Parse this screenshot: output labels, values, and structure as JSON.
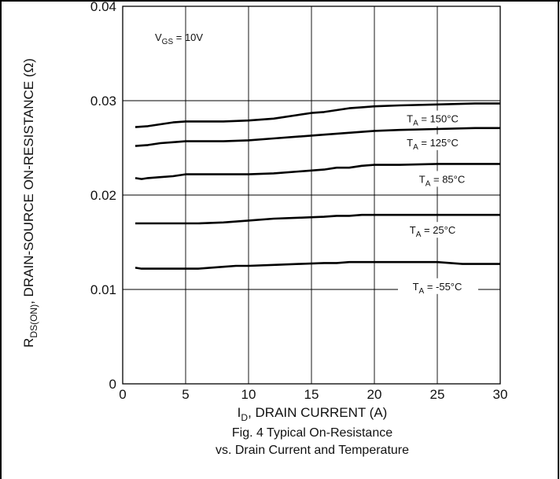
{
  "chart_data": {
    "type": "line",
    "title": "",
    "caption_line1": "Fig. 4 Typical On-Resistance",
    "caption_line2": "vs. Drain Current and Temperature",
    "xlabel": {
      "main": "I",
      "sub": "D",
      "rest": ", DRAIN CURRENT (A)"
    },
    "ylabel": {
      "main": "R",
      "sub": "DS(ON)",
      "rest": ",  DRAIN-SOURCE ON-RESISTANCE (Ω)"
    },
    "condition": {
      "main": "V",
      "sub": "GS",
      "rest": " = 10V"
    },
    "xlim": [
      0,
      30
    ],
    "ylim": [
      0,
      0.04
    ],
    "x_ticks": [
      "0",
      "5",
      "10",
      "15",
      "20",
      "25",
      "30"
    ],
    "y_ticks": [
      "0",
      "0.01",
      "0.02",
      "0.03",
      "0.04"
    ],
    "grid": true,
    "series": [
      {
        "name": "150°C",
        "label_main": "T",
        "label_sub": "A",
        "label_rest": " = 150°C",
        "x": [
          1,
          2,
          3,
          4,
          5,
          6,
          8,
          10,
          12,
          14,
          15,
          16,
          17,
          18,
          19,
          20,
          22,
          25,
          28,
          30
        ],
        "y": [
          0.0272,
          0.0273,
          0.0275,
          0.0277,
          0.0278,
          0.0278,
          0.0278,
          0.0279,
          0.0281,
          0.0285,
          0.0287,
          0.0288,
          0.029,
          0.0292,
          0.0293,
          0.0294,
          0.0295,
          0.0296,
          0.0297,
          0.0297
        ]
      },
      {
        "name": "125°C",
        "label_main": "T",
        "label_sub": "A",
        "label_rest": " = 125°C",
        "x": [
          1,
          2,
          3,
          4,
          5,
          6,
          8,
          10,
          12,
          14,
          16,
          18,
          20,
          22,
          25,
          28,
          30
        ],
        "y": [
          0.0252,
          0.0253,
          0.0255,
          0.0256,
          0.0257,
          0.0257,
          0.0257,
          0.0258,
          0.026,
          0.0262,
          0.0264,
          0.0266,
          0.0268,
          0.0269,
          0.027,
          0.0271,
          0.0271
        ]
      },
      {
        "name": "85°C",
        "label_main": "T",
        "label_sub": "A",
        "label_rest": " = 85°C",
        "x": [
          1,
          1.5,
          2,
          3,
          4,
          5,
          6,
          8,
          10,
          12,
          14,
          16,
          17,
          18,
          19,
          20,
          22,
          25,
          28,
          30
        ],
        "y": [
          0.0218,
          0.0217,
          0.0218,
          0.0219,
          0.022,
          0.0222,
          0.0222,
          0.0222,
          0.0222,
          0.0223,
          0.0225,
          0.0227,
          0.0229,
          0.0229,
          0.0231,
          0.0232,
          0.0232,
          0.0233,
          0.0233,
          0.0233
        ]
      },
      {
        "name": "25°C",
        "label_main": "T",
        "label_sub": "A",
        "label_rest": " = 25°C",
        "x": [
          1,
          3,
          5,
          6,
          8,
          10,
          12,
          14,
          16,
          17,
          18,
          19,
          20,
          22,
          25,
          28,
          30
        ],
        "y": [
          0.017,
          0.017,
          0.017,
          0.017,
          0.0171,
          0.0173,
          0.0175,
          0.0176,
          0.0177,
          0.0178,
          0.0178,
          0.0179,
          0.0179,
          0.0179,
          0.0179,
          0.0179,
          0.0179
        ]
      },
      {
        "name": "-55°C",
        "label_main": "T",
        "label_sub": "A",
        "label_rest": " = -55°C",
        "x": [
          1,
          1.5,
          3,
          5,
          6,
          8,
          9,
          10,
          12,
          14,
          16,
          17,
          18,
          20,
          22,
          25,
          27,
          30
        ],
        "y": [
          0.0123,
          0.0122,
          0.0122,
          0.0122,
          0.0122,
          0.0124,
          0.0125,
          0.0125,
          0.0126,
          0.0127,
          0.0128,
          0.0128,
          0.0129,
          0.0129,
          0.0129,
          0.0129,
          0.0127,
          0.0127
        ]
      }
    ]
  }
}
